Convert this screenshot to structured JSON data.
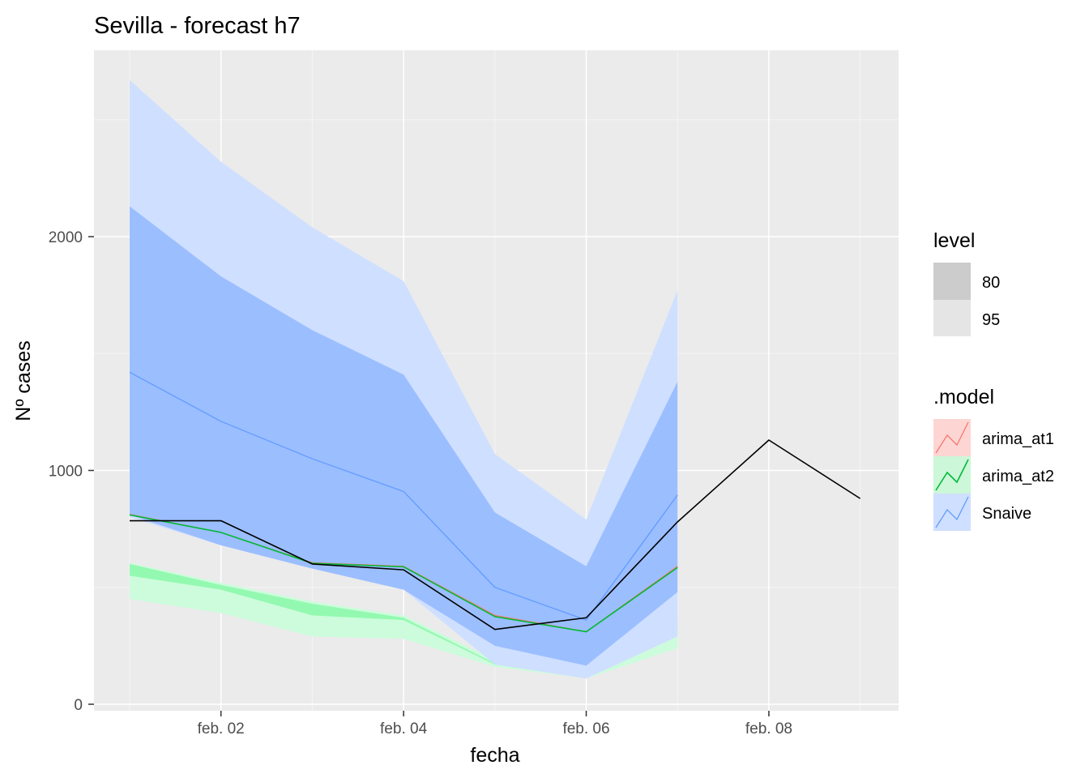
{
  "chart_data": {
    "type": "line",
    "title": "Sevilla - forecast h7",
    "xlabel": "fecha",
    "ylabel": "Nº cases",
    "x": [
      "feb. 01",
      "feb. 02",
      "feb. 03",
      "feb. 04",
      "feb. 05",
      "feb. 06",
      "feb. 07",
      "feb. 08",
      "feb. 09"
    ],
    "x_ticks": [
      {
        "label": "feb. 02",
        "day": 2
      },
      {
        "label": "feb. 04",
        "day": 4
      },
      {
        "label": "feb. 06",
        "day": 6
      },
      {
        "label": "feb. 08",
        "day": 8
      }
    ],
    "y_ticks": [
      0,
      1000,
      2000
    ],
    "xlim": [
      "feb. 01",
      "feb. 09"
    ],
    "ylim": [
      0,
      2800
    ],
    "grid": true,
    "legend_position": "right",
    "legends": {
      "level": {
        "title": "level",
        "entries": [
          "80",
          "95"
        ]
      },
      "model": {
        "title": ".model",
        "entries": [
          "arima_at1",
          "arima_at2",
          "Snaive"
        ]
      }
    },
    "actual": {
      "x": [
        "feb. 01",
        "feb. 02",
        "feb. 03",
        "feb. 04",
        "feb. 05",
        "feb. 06",
        "feb. 07",
        "feb. 08",
        "feb. 09"
      ],
      "values": [
        785,
        785,
        600,
        575,
        320,
        370,
        780,
        1130,
        880
      ]
    },
    "series": [
      {
        "name": "arima_at1",
        "color": "#F8766D",
        "x": [
          "feb. 01",
          "feb. 02",
          "feb. 03",
          "feb. 04",
          "feb. 05",
          "feb. 06",
          "feb. 07"
        ],
        "values": [
          812,
          735,
          605,
          590,
          380,
          310,
          590
        ],
        "lo80": [
          600,
          510,
          430,
          360,
          200,
          160,
          340
        ],
        "hi80": [
          600,
          510,
          430,
          360,
          200,
          160,
          340
        ],
        "lo95": [
          600,
          510,
          430,
          360,
          200,
          160,
          340
        ],
        "hi95": [
          600,
          510,
          430,
          360,
          200,
          160,
          340
        ]
      },
      {
        "name": "arima_at2",
        "color": "#00BA38",
        "x": [
          "feb. 01",
          "feb. 02",
          "feb. 03",
          "feb. 04",
          "feb. 05",
          "feb. 06",
          "feb. 07"
        ],
        "values": [
          810,
          735,
          603,
          588,
          375,
          310,
          585
        ],
        "lo80": [
          550,
          490,
          380,
          360,
          170,
          130,
          300
        ],
        "hi80": [
          600,
          510,
          430,
          370,
          175,
          140,
          350
        ],
        "lo95": [
          450,
          390,
          290,
          280,
          160,
          110,
          240
        ],
        "hi95": [
          605,
          520,
          440,
          380,
          190,
          175,
          360
        ]
      },
      {
        "name": "Snaive",
        "color": "#619CFF",
        "x": [
          "feb. 01",
          "feb. 02",
          "feb. 03",
          "feb. 04",
          "feb. 05",
          "feb. 06",
          "feb. 07"
        ],
        "values": [
          1420,
          1210,
          1050,
          910,
          500,
          360,
          895
        ],
        "lo80": [
          810,
          680,
          580,
          490,
          250,
          165,
          480
        ],
        "hi80": [
          2130,
          1830,
          1600,
          1410,
          820,
          590,
          1380
        ],
        "lo95": [
          800,
          680,
          580,
          490,
          170,
          110,
          290
        ],
        "hi95": [
          2670,
          2320,
          2040,
          1810,
          1070,
          790,
          1770
        ]
      }
    ]
  },
  "colors": {
    "panel": "#EBEBEB",
    "grid_major": "#FFFFFF",
    "grid_minor": "#F5F5F5",
    "actual_line": "#000000",
    "legend_key_80": "#CCCCCC",
    "legend_key_95": "#E5E5E5",
    "arima_at2_band80": "#93F9B0",
    "arima_at2_band95": "#CCFCDC",
    "snaive_band80": "#9BBEFF",
    "snaive_band95": "#CFDFFF",
    "legend_key_arima_at1": "#FDD6D3",
    "legend_key_arima_at2": "#CCF7D8",
    "legend_key_snaive": "#CFDFFF"
  }
}
